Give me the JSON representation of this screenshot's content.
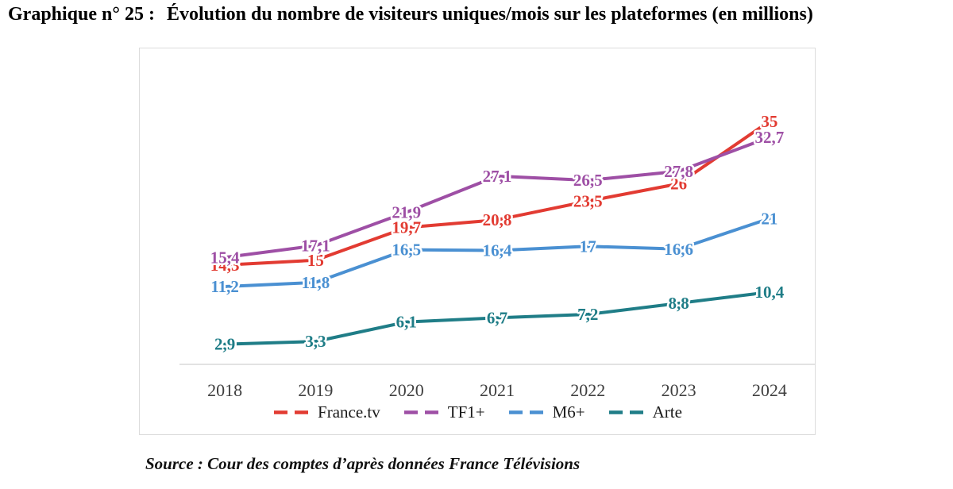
{
  "title": {
    "prefix": "Graphique n° 25 :",
    "text": "Évolution du nombre de visiteurs uniques/mois sur les plateformes (en millions)"
  },
  "source": "Source : Cour des comptes d’après données France Télévisions",
  "colors": {
    "axis": "#d9d9d9",
    "frame": "#dcdcdc",
    "year_label": "#3f3f3f",
    "legend_text": "#1a1a1a"
  },
  "chart_data": {
    "type": "line",
    "title": "Évolution du nombre de visiteurs uniques/mois sur les plateformes (en millions)",
    "categories": [
      "2018",
      "2019",
      "2020",
      "2021",
      "2022",
      "2023",
      "2024"
    ],
    "series": [
      {
        "name": "France.tv",
        "color": "#e23b32",
        "values": [
          14.3,
          15,
          19.7,
          20.8,
          23.5,
          26,
          35
        ]
      },
      {
        "name": "TF1+",
        "color": "#9e4fa5",
        "values": [
          15.4,
          17.1,
          21.9,
          27.1,
          26.5,
          27.8,
          32.7
        ]
      },
      {
        "name": "M6+",
        "color": "#4a90d2",
        "values": [
          11.2,
          11.8,
          16.5,
          16.4,
          17,
          16.6,
          21
        ]
      },
      {
        "name": "Arte",
        "color": "#1f7d87",
        "values": [
          2.9,
          3.3,
          6.1,
          6.7,
          7.2,
          8.8,
          10.4
        ]
      }
    ],
    "ylim": [
      0,
      45.5
    ],
    "grid": false,
    "y_axis_labels": false,
    "legend_position": "bottom",
    "decimal_separator": ",",
    "line_style": "dashed"
  }
}
